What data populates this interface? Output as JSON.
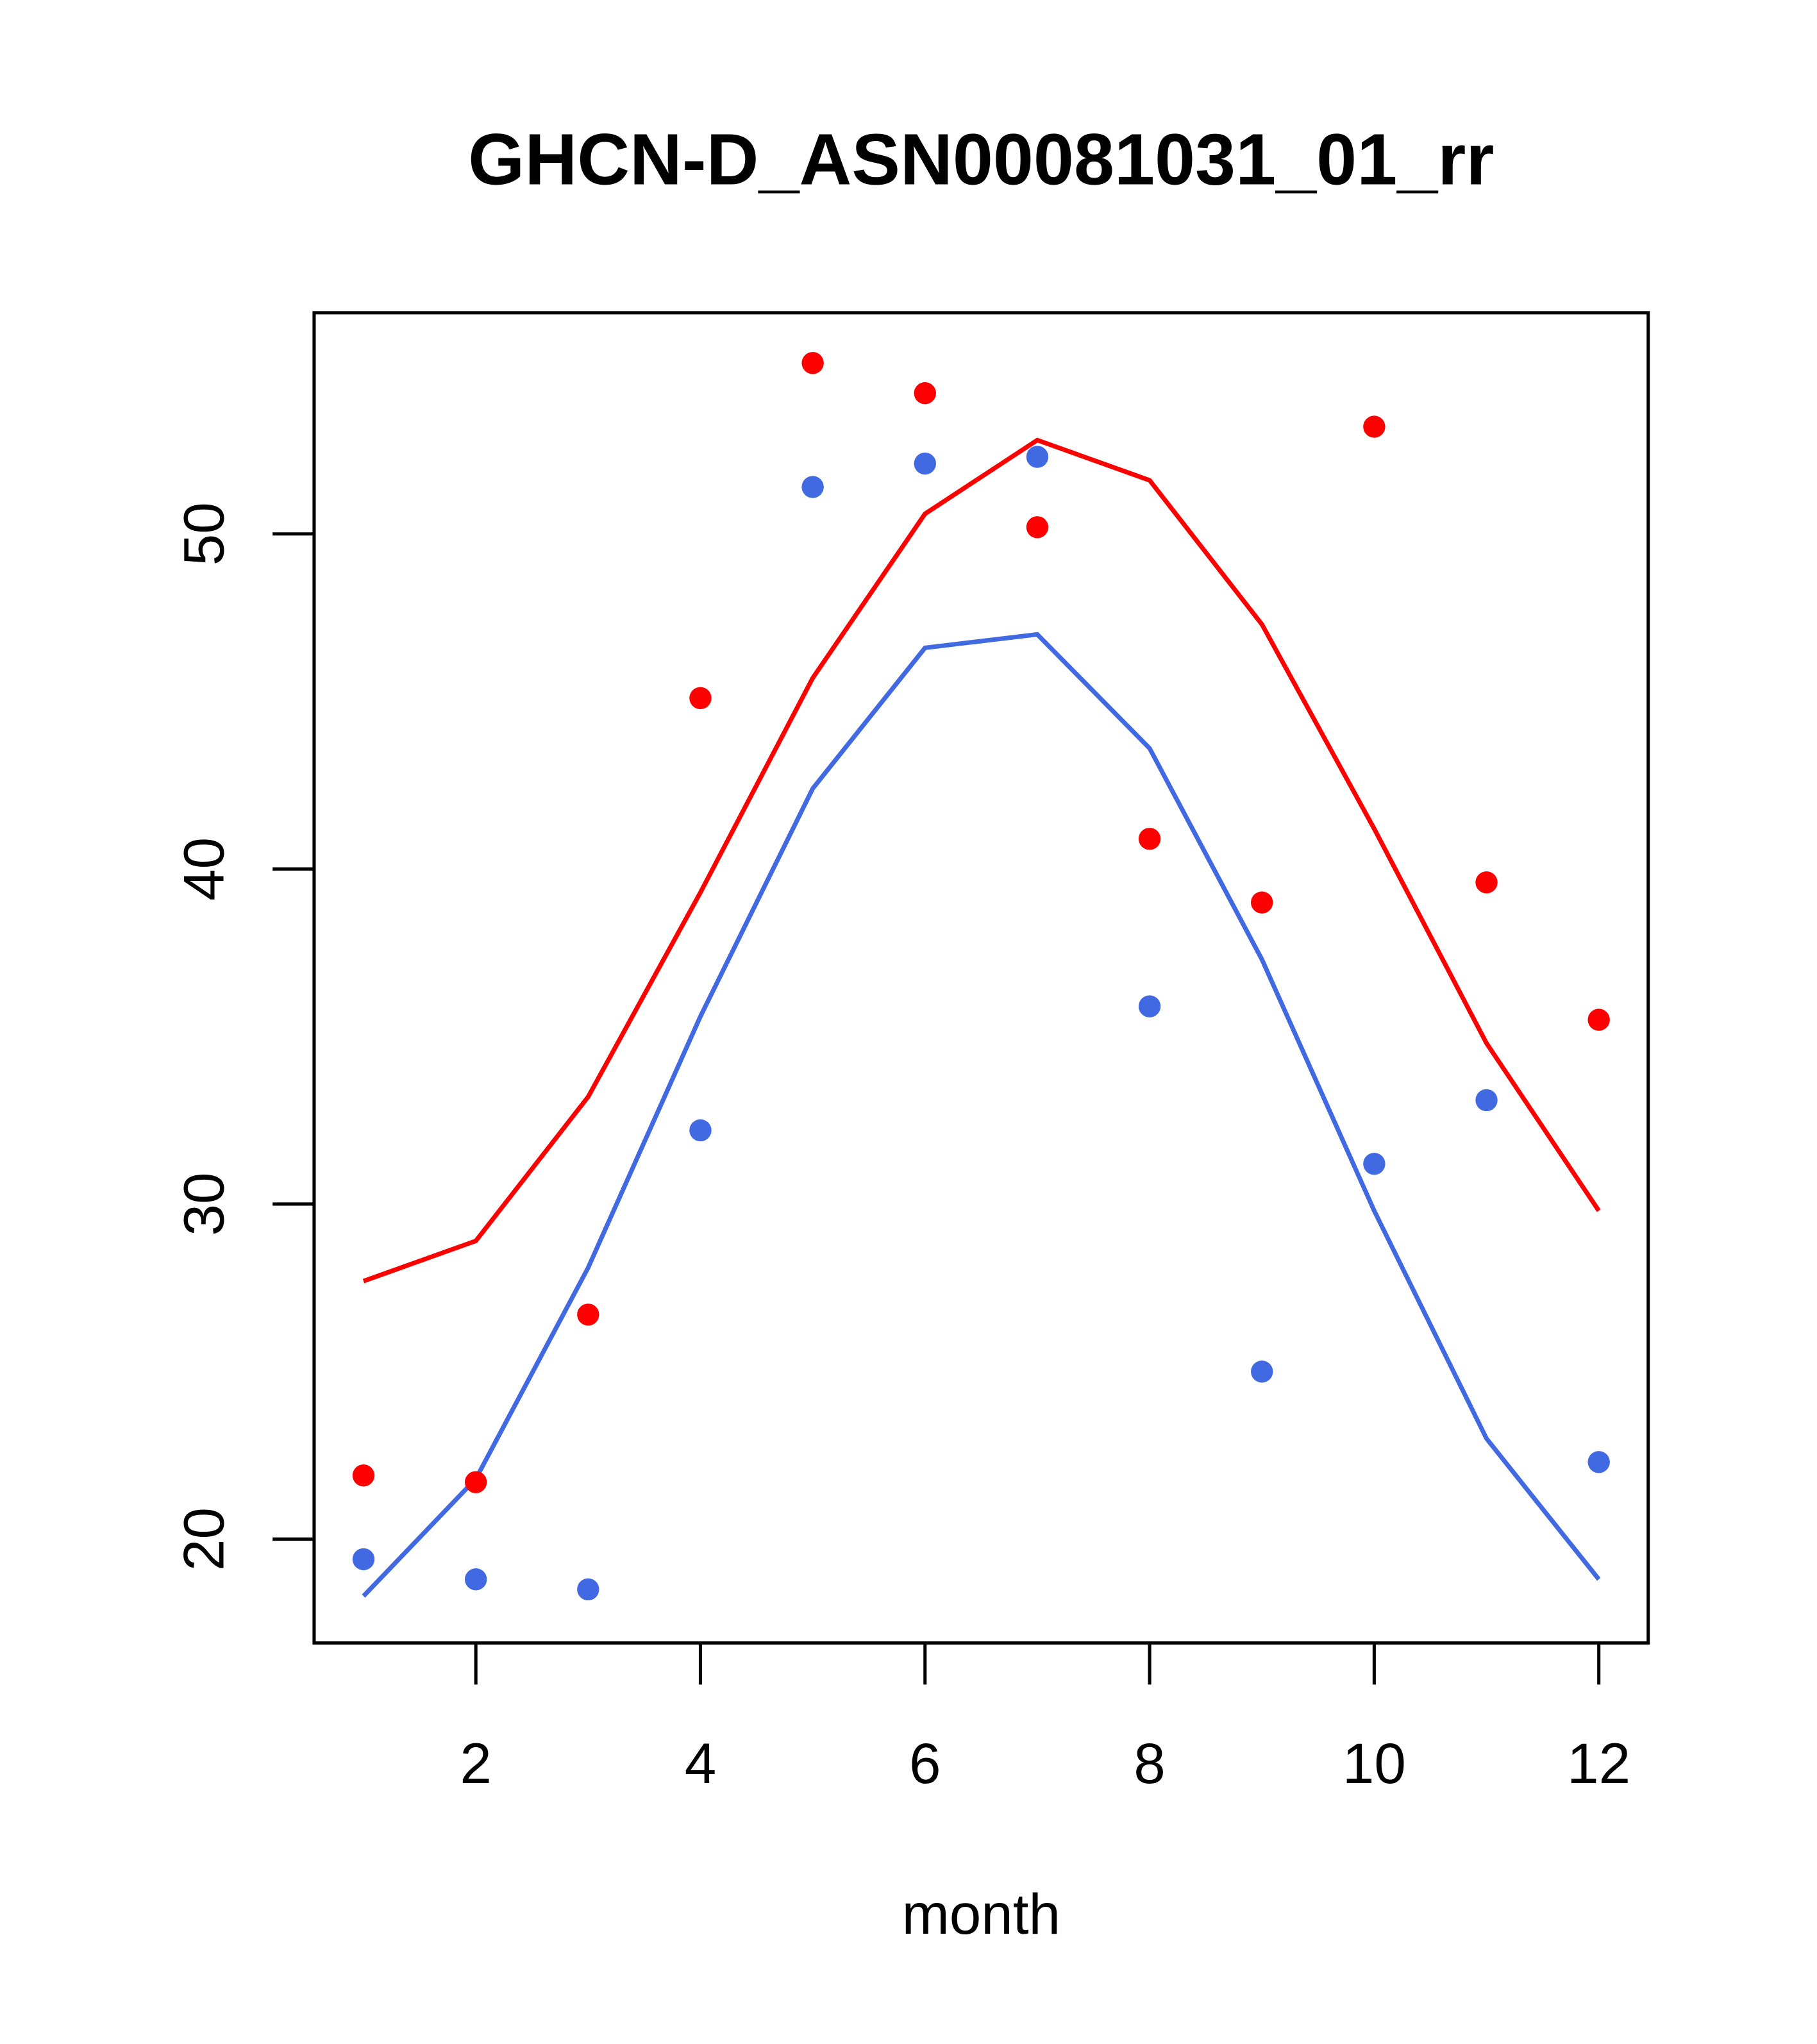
{
  "chart_data": {
    "type": "scatter",
    "title": "GHCN-D_ASN00081031_01_rr",
    "xlabel": "month",
    "ylabel": "",
    "xlim": [
      0.56,
      12.44
    ],
    "ylim": [
      16.9,
      56.6
    ],
    "xticks": [
      2,
      4,
      6,
      8,
      10,
      12
    ],
    "yticks": [
      20,
      30,
      40,
      50
    ],
    "grid": false,
    "x": [
      1,
      2,
      3,
      4,
      5,
      6,
      7,
      8,
      9,
      10,
      11,
      12
    ],
    "series": [
      {
        "name": "red points",
        "kind": "points",
        "color": "#ff0000",
        "values": [
          21.9,
          21.7,
          26.7,
          45.1,
          55.1,
          54.2,
          50.2,
          40.9,
          39.0,
          53.2,
          39.6,
          35.5
        ]
      },
      {
        "name": "blue points",
        "kind": "points",
        "color": "#4169e1",
        "values": [
          19.4,
          18.8,
          18.5,
          32.2,
          51.4,
          52.1,
          52.3,
          35.9,
          25.0,
          31.2,
          33.1,
          22.3
        ]
      },
      {
        "name": "red line",
        "kind": "line",
        "color": "#ff0000",
        "values": [
          27.7,
          28.9,
          33.2,
          39.3,
          45.7,
          50.6,
          52.8,
          51.6,
          47.3,
          41.2,
          34.8,
          29.8
        ]
      },
      {
        "name": "blue line",
        "kind": "line",
        "color": "#4169e1",
        "values": [
          18.3,
          21.8,
          28.1,
          35.6,
          42.4,
          46.6,
          47.0,
          43.6,
          37.3,
          29.8,
          23.0,
          18.8
        ]
      }
    ]
  }
}
